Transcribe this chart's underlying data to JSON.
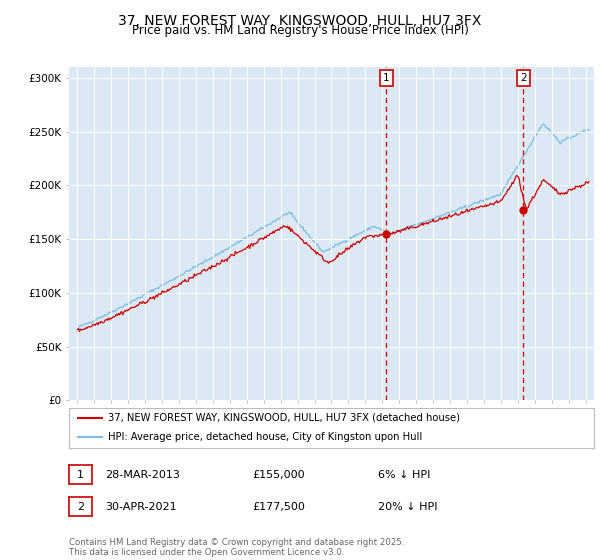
{
  "title": "37, NEW FOREST WAY, KINGSWOOD, HULL, HU7 3FX",
  "subtitle": "Price paid vs. HM Land Registry's House Price Index (HPI)",
  "title_fontsize": 10,
  "subtitle_fontsize": 8.5,
  "background_color": "#ffffff",
  "plot_bg_color": "#dce9f5",
  "grid_color": "#ffffff",
  "hpi_color": "#7bbde0",
  "price_color": "#cc0000",
  "marker1_x": 2013.24,
  "marker1_y": 155000,
  "marker2_x": 2021.33,
  "marker2_y": 177500,
  "legend_line1": "37, NEW FOREST WAY, KINGSWOOD, HULL, HU7 3FX (detached house)",
  "legend_line2": "HPI: Average price, detached house, City of Kingston upon Hull",
  "annotation1_date": "28-MAR-2013",
  "annotation1_price": "£155,000",
  "annotation1_hpi": "6% ↓ HPI",
  "annotation2_date": "30-APR-2021",
  "annotation2_price": "£177,500",
  "annotation2_hpi": "20% ↓ HPI",
  "footer": "Contains HM Land Registry data © Crown copyright and database right 2025.\nThis data is licensed under the Open Government Licence v3.0.",
  "ylim": [
    0,
    310000
  ],
  "xlim": [
    1994.5,
    2025.5
  ],
  "yticks": [
    0,
    50000,
    100000,
    150000,
    200000,
    250000,
    300000
  ],
  "ytick_labels": [
    "£0",
    "£50K",
    "£100K",
    "£150K",
    "£200K",
    "£250K",
    "£300K"
  ],
  "xticks": [
    1995,
    1996,
    1997,
    1998,
    1999,
    2000,
    2001,
    2002,
    2003,
    2004,
    2005,
    2006,
    2007,
    2008,
    2009,
    2010,
    2011,
    2012,
    2013,
    2014,
    2015,
    2016,
    2017,
    2018,
    2019,
    2020,
    2021,
    2022,
    2023,
    2024,
    2025
  ]
}
